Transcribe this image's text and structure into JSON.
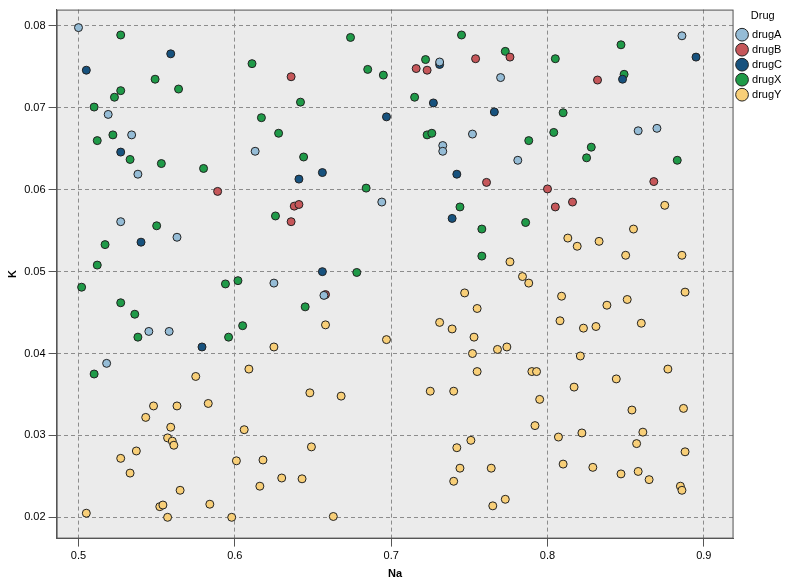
{
  "chart_data": {
    "type": "scatter",
    "x_label": "Na",
    "y_label": "K",
    "legend_title": "Drug",
    "legend": "right",
    "grid": true,
    "xlim": [
      0.486,
      0.919
    ],
    "xticks": [
      0.5,
      0.6,
      0.7,
      0.8,
      0.9
    ],
    "ylim": [
      0.0174,
      0.082
    ],
    "yticks": [
      0.02,
      0.03,
      0.04,
      0.05,
      0.06,
      0.07,
      0.08
    ],
    "series": [
      {
        "name": "drugA",
        "color": "#95bcd6",
        "marker": "circle",
        "x": [
          0.5,
          0.519,
          0.534,
          0.538,
          0.527,
          0.563,
          0.558,
          0.545,
          0.518,
          0.613,
          0.625,
          0.657,
          0.694,
          0.731,
          0.733,
          0.733,
          0.752,
          0.77,
          0.781,
          0.858,
          0.87,
          0.886
        ],
        "values": [
          0.0798,
          0.0692,
          0.0667,
          0.0619,
          0.0561,
          0.0542,
          0.0427,
          0.0427,
          0.0388,
          0.0647,
          0.0486,
          0.0471,
          0.0585,
          0.0756,
          0.0654,
          0.0647,
          0.0668,
          0.0737,
          0.0636,
          0.0672,
          0.0675,
          0.0788
        ]
      },
      {
        "name": "drugB",
        "color": "#c6575a",
        "marker": "circle",
        "x": [
          0.589,
          0.636,
          0.638,
          0.641,
          0.636,
          0.658,
          0.716,
          0.723,
          0.754,
          0.776,
          0.761,
          0.8,
          0.805,
          0.816,
          0.832,
          0.868
        ],
        "values": [
          0.0598,
          0.0738,
          0.058,
          0.0582,
          0.0561,
          0.0472,
          0.0748,
          0.0746,
          0.076,
          0.0762,
          0.0609,
          0.0601,
          0.0579,
          0.0585,
          0.0734,
          0.061
        ]
      },
      {
        "name": "drugC",
        "color": "#17527e",
        "marker": "circle",
        "x": [
          0.505,
          0.527,
          0.54,
          0.559,
          0.579,
          0.641,
          0.656,
          0.656,
          0.697,
          0.727,
          0.731,
          0.739,
          0.742,
          0.766,
          0.848,
          0.895
        ],
        "values": [
          0.0746,
          0.0646,
          0.0536,
          0.0766,
          0.0408,
          0.0613,
          0.0621,
          0.05,
          0.0689,
          0.0706,
          0.0753,
          0.0565,
          0.0619,
          0.0695,
          0.0735,
          0.0762
        ]
      },
      {
        "name": "drugX",
        "color": "#1f9a48",
        "marker": "circle",
        "x": [
          0.502,
          0.51,
          0.512,
          0.51,
          0.512,
          0.517,
          0.523,
          0.522,
          0.527,
          0.527,
          0.527,
          0.533,
          0.536,
          0.538,
          0.549,
          0.55,
          0.553,
          0.564,
          0.58,
          0.594,
          0.596,
          0.602,
          0.605,
          0.611,
          0.617,
          0.626,
          0.628,
          0.642,
          0.644,
          0.645,
          0.674,
          0.684,
          0.685,
          0.695,
          0.678,
          0.715,
          0.722,
          0.723,
          0.726,
          0.744,
          0.745,
          0.758,
          0.758,
          0.773,
          0.786,
          0.788,
          0.804,
          0.805,
          0.81,
          0.825,
          0.828,
          0.847,
          0.849,
          0.883
        ],
        "values": [
          0.0481,
          0.0701,
          0.066,
          0.0375,
          0.0508,
          0.0533,
          0.0713,
          0.0667,
          0.0721,
          0.0789,
          0.0462,
          0.0637,
          0.0448,
          0.042,
          0.0735,
          0.0556,
          0.0632,
          0.0723,
          0.0626,
          0.0485,
          0.042,
          0.0489,
          0.0434,
          0.0754,
          0.0688,
          0.0568,
          0.0669,
          0.0707,
          0.064,
          0.0457,
          0.0786,
          0.0602,
          0.0747,
          0.074,
          0.0499,
          0.0713,
          0.0759,
          0.0667,
          0.0669,
          0.0579,
          0.0789,
          0.0552,
          0.0519,
          0.0769,
          0.056,
          0.066,
          0.067,
          0.076,
          0.0694,
          0.0639,
          0.0652,
          0.0777,
          0.0741,
          0.0636
        ]
      },
      {
        "name": "drugY",
        "color": "#f8cf78",
        "marker": "circle",
        "x": [
          0.505,
          0.527,
          0.533,
          0.537,
          0.543,
          0.548,
          0.552,
          0.554,
          0.557,
          0.557,
          0.559,
          0.56,
          0.561,
          0.563,
          0.565,
          0.575,
          0.583,
          0.584,
          0.598,
          0.601,
          0.606,
          0.609,
          0.616,
          0.618,
          0.625,
          0.63,
          0.643,
          0.648,
          0.649,
          0.658,
          0.663,
          0.668,
          0.697,
          0.725,
          0.731,
          0.739,
          0.74,
          0.74,
          0.742,
          0.744,
          0.747,
          0.751,
          0.752,
          0.753,
          0.755,
          0.755,
          0.764,
          0.765,
          0.768,
          0.773,
          0.774,
          0.776,
          0.784,
          0.788,
          0.79,
          0.792,
          0.793,
          0.795,
          0.807,
          0.808,
          0.809,
          0.81,
          0.813,
          0.817,
          0.819,
          0.821,
          0.822,
          0.823,
          0.831,
          0.833,
          0.829,
          0.838,
          0.844,
          0.847,
          0.85,
          0.851,
          0.854,
          0.855,
          0.858,
          0.857,
          0.86,
          0.861,
          0.865,
          0.875,
          0.877,
          0.885,
          0.886,
          0.886,
          0.887,
          0.888,
          0.888
        ],
        "values": [
          0.0205,
          0.0272,
          0.0254,
          0.0281,
          0.0322,
          0.0336,
          0.0213,
          0.0215,
          0.02,
          0.0297,
          0.031,
          0.0293,
          0.0288,
          0.0336,
          0.0233,
          0.0372,
          0.0339,
          0.0216,
          0.02,
          0.0269,
          0.0307,
          0.0381,
          0.0238,
          0.027,
          0.0408,
          0.0248,
          0.0247,
          0.0352,
          0.0286,
          0.0435,
          0.0201,
          0.0348,
          0.0417,
          0.0354,
          0.0438,
          0.043,
          0.0354,
          0.0244,
          0.0285,
          0.026,
          0.0474,
          0.0294,
          0.04,
          0.042,
          0.0378,
          0.0455,
          0.026,
          0.0214,
          0.0405,
          0.0222,
          0.0408,
          0.0512,
          0.0494,
          0.0486,
          0.0378,
          0.0312,
          0.0378,
          0.0344,
          0.0298,
          0.044,
          0.047,
          0.0265,
          0.0541,
          0.0359,
          0.0531,
          0.0397,
          0.0303,
          0.0431,
          0.0433,
          0.0537,
          0.0261,
          0.0459,
          0.0369,
          0.0253,
          0.052,
          0.0466,
          0.0331,
          0.0552,
          0.0256,
          0.029,
          0.0437,
          0.0304,
          0.0246,
          0.0581,
          0.0381,
          0.0238,
          0.052,
          0.0233,
          0.0333,
          0.0475,
          0.028
        ]
      }
    ]
  }
}
